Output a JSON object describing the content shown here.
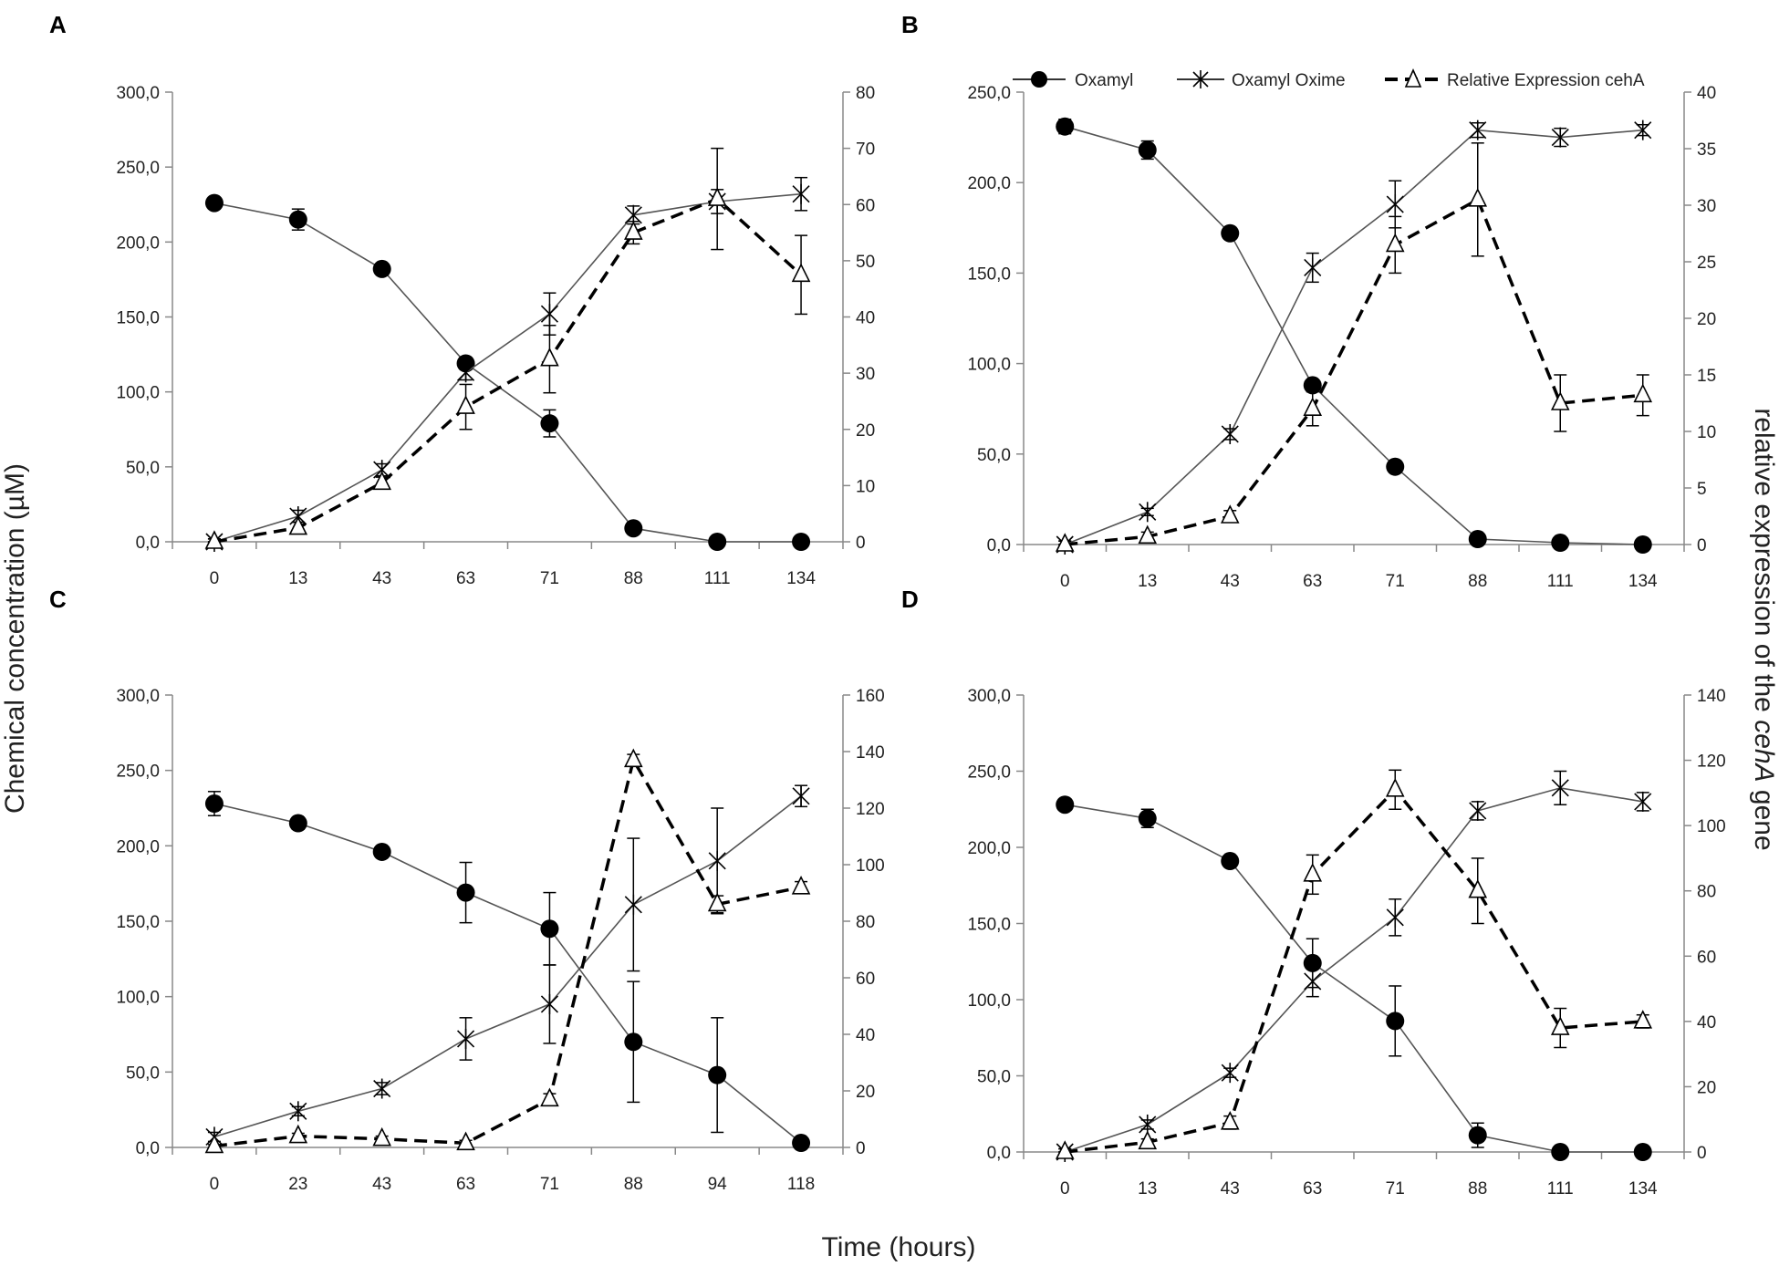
{
  "figure": {
    "ylabel_left": "Chemical concentration (µM)",
    "ylabel_right_prefix": "relative expression of  the ",
    "ylabel_right_gene": "cehA",
    "ylabel_right_suffix": "  gene",
    "xlabel": "Time (hours)"
  },
  "legend": {
    "oxamyl": "Oxamyl",
    "oxime": "Oxamyl Oxime",
    "expression": "Relative Expression cehA"
  },
  "colors": {
    "line": "#555555",
    "dashed": "#000000",
    "marker": "#000000",
    "axis": "#888888"
  },
  "chart_data": [
    {
      "type": "line",
      "panel": "A",
      "categories": [
        "0",
        "13",
        "43",
        "63",
        "71",
        "88",
        "111",
        "134"
      ],
      "ylim_left": [
        0,
        300
      ],
      "yticks_left": [
        0,
        50,
        100,
        150,
        200,
        250,
        300
      ],
      "ylim_right": [
        0,
        80
      ],
      "yticks_right": [
        0,
        10,
        20,
        30,
        40,
        50,
        60,
        70,
        80
      ],
      "series": [
        {
          "name": "Oxamyl",
          "axis": "left",
          "marker": "circle",
          "values": [
            226,
            215,
            182,
            119,
            79,
            9,
            0,
            0
          ],
          "errors": [
            3,
            7,
            3,
            4,
            9,
            2,
            0,
            0
          ]
        },
        {
          "name": "Oxamyl Oxime",
          "axis": "left",
          "marker": "star",
          "values": [
            0,
            17,
            48,
            113,
            152,
            218,
            227,
            232
          ],
          "errors": [
            2,
            4,
            4,
            5,
            14,
            6,
            8,
            11
          ]
        },
        {
          "name": "Relative Expression cehA",
          "axis": "right",
          "marker": "triangle",
          "values": [
            0,
            2.5,
            10.5,
            24,
            32.5,
            55,
            61,
            47.5
          ],
          "errors": [
            0.5,
            1,
            1,
            4,
            6,
            2,
            9,
            7
          ]
        }
      ]
    },
    {
      "type": "line",
      "panel": "B",
      "categories": [
        "0",
        "13",
        "43",
        "63",
        "71",
        "88",
        "111",
        "134"
      ],
      "ylim_left": [
        0,
        250
      ],
      "yticks_left": [
        0,
        50,
        100,
        150,
        200,
        250
      ],
      "ylim_right": [
        0,
        40
      ],
      "yticks_right": [
        0,
        5,
        10,
        15,
        20,
        25,
        30,
        35,
        40
      ],
      "series": [
        {
          "name": "Oxamyl",
          "axis": "left",
          "marker": "circle",
          "values": [
            231,
            218,
            172,
            88,
            43,
            3,
            1,
            0
          ],
          "errors": [
            4,
            5,
            3,
            3,
            2,
            2,
            1,
            1
          ]
        },
        {
          "name": "Oxamyl Oxime",
          "axis": "left",
          "marker": "star",
          "values": [
            0,
            18,
            61,
            153,
            188,
            229,
            225,
            229
          ],
          "errors": [
            2,
            2,
            3,
            8,
            13,
            4,
            5,
            3
          ]
        },
        {
          "name": "Relative Expression cehA",
          "axis": "right",
          "marker": "triangle",
          "values": [
            0,
            0.7,
            2.5,
            12,
            26.5,
            30.5,
            12.5,
            13.2
          ],
          "errors": [
            0.3,
            0.4,
            0.5,
            1.5,
            2.5,
            5,
            2.5,
            1.8
          ]
        }
      ]
    },
    {
      "type": "line",
      "panel": "C",
      "categories": [
        "0",
        "23",
        "43",
        "63",
        "71",
        "88",
        "94",
        "118"
      ],
      "ylim_left": [
        0,
        300
      ],
      "yticks_left": [
        0,
        50,
        100,
        150,
        200,
        250,
        300
      ],
      "ylim_right": [
        0,
        160
      ],
      "yticks_right": [
        0,
        20,
        40,
        60,
        80,
        100,
        120,
        140,
        160
      ],
      "series": [
        {
          "name": "Oxamyl",
          "axis": "left",
          "marker": "circle",
          "values": [
            228,
            215,
            196,
            169,
            145,
            70,
            48,
            3
          ],
          "errors": [
            8,
            4,
            3,
            20,
            24,
            40,
            38,
            3
          ]
        },
        {
          "name": "Oxamyl Oxime",
          "axis": "left",
          "marker": "star",
          "values": [
            7,
            24,
            39,
            72,
            95,
            161,
            190,
            233
          ],
          "errors": [
            3,
            3,
            4,
            14,
            26,
            44,
            35,
            7
          ]
        },
        {
          "name": "Relative Expression cehA",
          "axis": "right",
          "marker": "triangle",
          "values": [
            0.5,
            4,
            3,
            1.5,
            17,
            137,
            86,
            92
          ],
          "errors": [
            0.5,
            1,
            1,
            1,
            2,
            2,
            3,
            2
          ]
        }
      ]
    },
    {
      "type": "line",
      "panel": "D",
      "categories": [
        "0",
        "13",
        "43",
        "63",
        "71",
        "88",
        "111",
        "134"
      ],
      "ylim_left": [
        0,
        300
      ],
      "yticks_left": [
        0,
        50,
        100,
        150,
        200,
        250,
        300
      ],
      "ylim_right": [
        0,
        140
      ],
      "yticks_right": [
        0,
        20,
        40,
        60,
        80,
        100,
        120,
        140
      ],
      "series": [
        {
          "name": "Oxamyl",
          "axis": "left",
          "marker": "circle",
          "values": [
            228,
            219,
            191,
            124,
            86,
            11,
            0,
            0
          ],
          "errors": [
            3,
            6,
            3,
            16,
            23,
            8,
            0,
            0
          ]
        },
        {
          "name": "Oxamyl Oxime",
          "axis": "left",
          "marker": "star",
          "values": [
            0,
            18,
            52,
            112,
            154,
            224,
            239,
            230
          ],
          "errors": [
            2,
            3,
            3,
            10,
            12,
            6,
            11,
            6
          ]
        },
        {
          "name": "Relative Expression cehA",
          "axis": "right",
          "marker": "triangle",
          "values": [
            0,
            3,
            9,
            85,
            111,
            80,
            38,
            40
          ],
          "errors": [
            1,
            1,
            2,
            6,
            6,
            10,
            6,
            2
          ]
        }
      ]
    }
  ]
}
